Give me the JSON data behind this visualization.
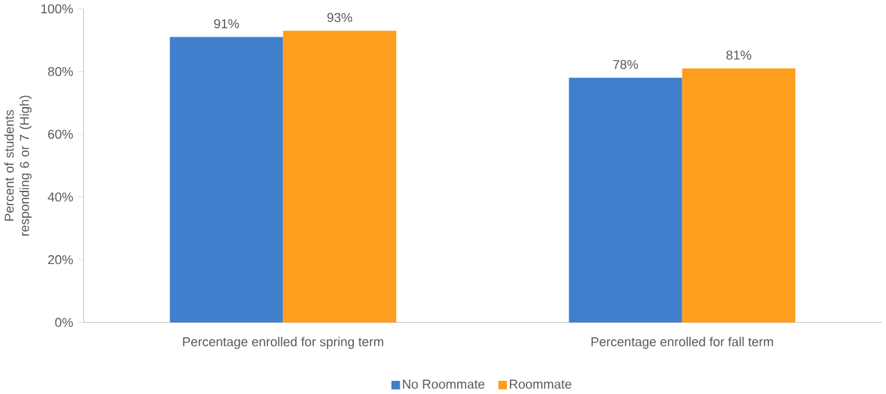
{
  "chart_data": {
    "type": "bar",
    "ylabel": "Percent of students responding 6 or 7 (High)",
    "categories": [
      "Percentage enrolled for spring term",
      "Percentage enrolled for fall term"
    ],
    "series": [
      {
        "name": "No Roommate",
        "color": "#3f7fcc",
        "values": [
          91,
          78
        ],
        "value_labels": [
          "91%",
          "78%"
        ]
      },
      {
        "name": "Roommate",
        "color": "#fd9e1d",
        "values": [
          93,
          81
        ],
        "value_labels": [
          "93%",
          "81%"
        ]
      }
    ],
    "ylim": [
      0,
      100
    ],
    "yticks": [
      {
        "value": 0,
        "label": "0%"
      },
      {
        "value": 20,
        "label": "20%"
      },
      {
        "value": 40,
        "label": "40%"
      },
      {
        "value": 60,
        "label": "60%"
      },
      {
        "value": 80,
        "label": "80%"
      },
      {
        "value": 100,
        "label": "100%"
      }
    ],
    "grid": false,
    "legend": "bottom"
  }
}
